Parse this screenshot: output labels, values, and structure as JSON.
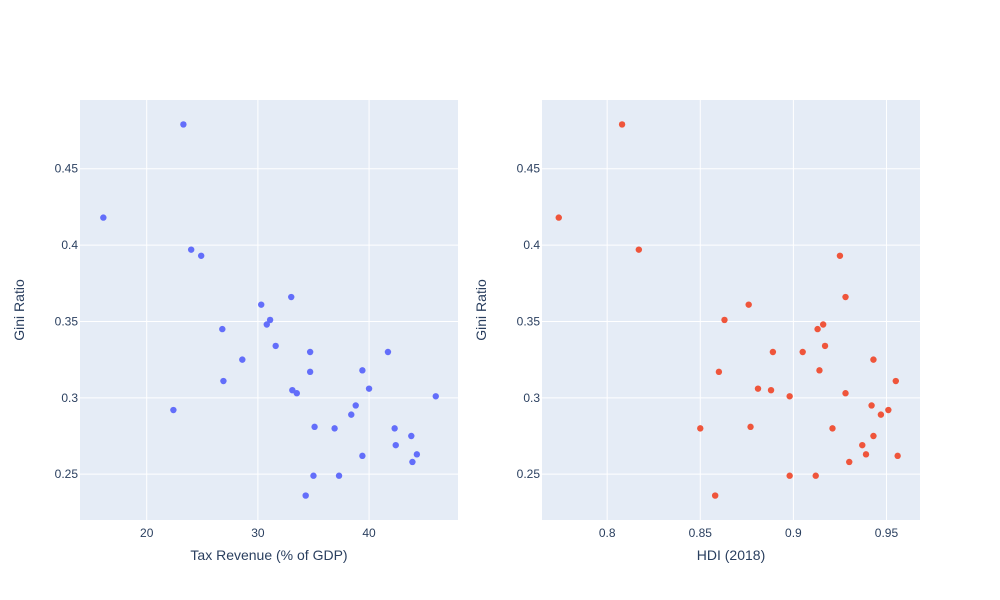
{
  "colors": {
    "background": "#ffffff",
    "plot_background": "#E5ECF6",
    "grid": "#ffffff",
    "text": "#2a3f5f",
    "series_left": "#636efa",
    "series_right": "#EF553B"
  },
  "chart_data": [
    {
      "type": "scatter",
      "title": "",
      "xlabel": "Tax Revenue (% of GDP)",
      "ylabel": "Gini Ratio",
      "xlim": [
        14,
        48
      ],
      "ylim": [
        0.22,
        0.495
      ],
      "xticks": [
        20,
        30,
        40
      ],
      "xtick_labels": [
        "20",
        "30",
        "40"
      ],
      "yticks": [
        0.25,
        0.3,
        0.35,
        0.4,
        0.45
      ],
      "ytick_labels": [
        "0.25",
        "0.3",
        "0.35",
        "0.4",
        "0.45"
      ],
      "grid": true,
      "color": "#636efa",
      "points": [
        [
          16.1,
          0.418
        ],
        [
          23.3,
          0.479
        ],
        [
          24.0,
          0.397
        ],
        [
          24.9,
          0.393
        ],
        [
          22.4,
          0.292
        ],
        [
          26.8,
          0.345
        ],
        [
          26.9,
          0.311
        ],
        [
          28.6,
          0.325
        ],
        [
          30.3,
          0.361
        ],
        [
          30.8,
          0.348
        ],
        [
          31.1,
          0.351
        ],
        [
          31.6,
          0.334
        ],
        [
          33.0,
          0.366
        ],
        [
          33.1,
          0.305
        ],
        [
          33.5,
          0.303
        ],
        [
          34.7,
          0.33
        ],
        [
          34.7,
          0.317
        ],
        [
          35.1,
          0.281
        ],
        [
          35.0,
          0.249
        ],
        [
          34.3,
          0.236
        ],
        [
          36.9,
          0.28
        ],
        [
          37.3,
          0.249
        ],
        [
          38.4,
          0.289
        ],
        [
          38.8,
          0.295
        ],
        [
          39.4,
          0.318
        ],
        [
          39.4,
          0.262
        ],
        [
          40.0,
          0.306
        ],
        [
          41.7,
          0.33
        ],
        [
          42.3,
          0.28
        ],
        [
          42.4,
          0.269
        ],
        [
          43.8,
          0.275
        ],
        [
          43.9,
          0.258
        ],
        [
          44.3,
          0.263
        ],
        [
          46.0,
          0.301
        ]
      ]
    },
    {
      "type": "scatter",
      "title": "",
      "xlabel": "HDI (2018)",
      "ylabel": "Gini Ratio",
      "xlim": [
        0.765,
        0.968
      ],
      "ylim": [
        0.22,
        0.495
      ],
      "xticks": [
        0.8,
        0.85,
        0.9,
        0.95
      ],
      "xtick_labels": [
        "0.8",
        "0.85",
        "0.9",
        "0.95"
      ],
      "yticks": [
        0.25,
        0.3,
        0.35,
        0.4,
        0.45
      ],
      "ytick_labels": [
        "0.25",
        "0.3",
        "0.35",
        "0.4",
        "0.45"
      ],
      "grid": true,
      "color": "#EF553B",
      "points": [
        [
          0.774,
          0.418
        ],
        [
          0.808,
          0.479
        ],
        [
          0.817,
          0.397
        ],
        [
          0.925,
          0.393
        ],
        [
          0.876,
          0.361
        ],
        [
          0.928,
          0.366
        ],
        [
          0.863,
          0.351
        ],
        [
          0.913,
          0.345
        ],
        [
          0.916,
          0.348
        ],
        [
          0.889,
          0.33
        ],
        [
          0.905,
          0.33
        ],
        [
          0.917,
          0.334
        ],
        [
          0.86,
          0.317
        ],
        [
          0.914,
          0.318
        ],
        [
          0.943,
          0.325
        ],
        [
          0.955,
          0.311
        ],
        [
          0.881,
          0.306
        ],
        [
          0.888,
          0.305
        ],
        [
          0.898,
          0.301
        ],
        [
          0.928,
          0.303
        ],
        [
          0.942,
          0.295
        ],
        [
          0.951,
          0.292
        ],
        [
          0.947,
          0.289
        ],
        [
          0.85,
          0.28
        ],
        [
          0.877,
          0.281
        ],
        [
          0.921,
          0.28
        ],
        [
          0.943,
          0.275
        ],
        [
          0.937,
          0.269
        ],
        [
          0.939,
          0.263
        ],
        [
          0.956,
          0.262
        ],
        [
          0.93,
          0.258
        ],
        [
          0.898,
          0.249
        ],
        [
          0.912,
          0.249
        ],
        [
          0.858,
          0.236
        ]
      ]
    }
  ]
}
